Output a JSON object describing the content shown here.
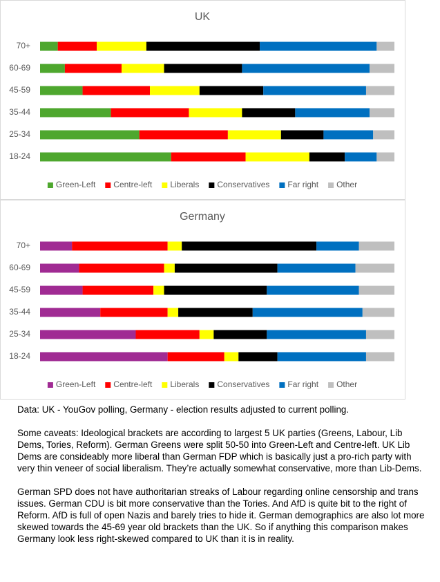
{
  "chart_data": [
    {
      "type": "stacked-bar-horizontal",
      "title": "UK",
      "categories": [
        "70+",
        "60-69",
        "45-59",
        "35-44",
        "25-34",
        "18-24"
      ],
      "xlim": [
        0,
        100
      ],
      "series": [
        {
          "name": "Green-Left",
          "color": "#4ea72e",
          "values": [
            5,
            7,
            12,
            20,
            28,
            37
          ]
        },
        {
          "name": "Centre-left",
          "color": "#ff0000",
          "values": [
            11,
            16,
            19,
            22,
            25,
            21
          ]
        },
        {
          "name": "Liberals",
          "color": "#ffff00",
          "values": [
            14,
            12,
            14,
            15,
            15,
            18
          ]
        },
        {
          "name": "Conservatives",
          "color": "#000000",
          "values": [
            32,
            22,
            18,
            15,
            12,
            10
          ]
        },
        {
          "name": "Far right",
          "color": "#0070c0",
          "values": [
            33,
            36,
            29,
            21,
            14,
            9
          ]
        },
        {
          "name": "Other",
          "color": "#bfbfbf",
          "values": [
            5,
            7,
            8,
            7,
            6,
            5
          ]
        }
      ]
    },
    {
      "type": "stacked-bar-horizontal",
      "title": "Germany",
      "categories": [
        "70+",
        "60-69",
        "45-59",
        "35-44",
        "25-34",
        "18-24"
      ],
      "xlim": [
        0,
        100
      ],
      "series": [
        {
          "name": "Green-Left",
          "color": "#a02b93",
          "values": [
            9,
            11,
            12,
            17,
            27,
            36
          ]
        },
        {
          "name": "Centre-left",
          "color": "#ff0000",
          "values": [
            27,
            24,
            20,
            19,
            18,
            16
          ]
        },
        {
          "name": "Liberals",
          "color": "#ffff00",
          "values": [
            4,
            3,
            3,
            3,
            4,
            4
          ]
        },
        {
          "name": "Conservatives",
          "color": "#000000",
          "values": [
            38,
            29,
            29,
            21,
            15,
            11
          ]
        },
        {
          "name": "Far right",
          "color": "#0070c0",
          "values": [
            12,
            22,
            26,
            31,
            28,
            25
          ]
        },
        {
          "name": "Other",
          "color": "#bfbfbf",
          "values": [
            10,
            11,
            10,
            9,
            8,
            8
          ]
        }
      ]
    }
  ],
  "notes": [
    "Data: UK - YouGov polling, Germany - election results adjusted to current polling.",
    "Some caveats: Ideological brackets are according to largest 5 UK parties (Greens, Labour, Lib Dems, Tories, Reform). German Greens were split 50-50 into Green-Left and Centre-left. UK Lib Dems are consideably more liberal than German FDP which is basically just a pro-rich party with very thin veneer of social liberalism. They’re actually somewhat conservative, more than Lib-Dems.",
    "German SPD does not have authoritarian streaks of Labour regarding online censorship and trans issues. German CDU is bit more conservative than the Tories. And AfD is quite bit to the right of Reform. AfD is full of open Nazis and barely tries to hide it. German demographics are also lot more skewed towards the 45-69 year old brackets than the UK. So if anything this comparison makes Germany look less right-skewed compared to UK than it is in reality."
  ]
}
